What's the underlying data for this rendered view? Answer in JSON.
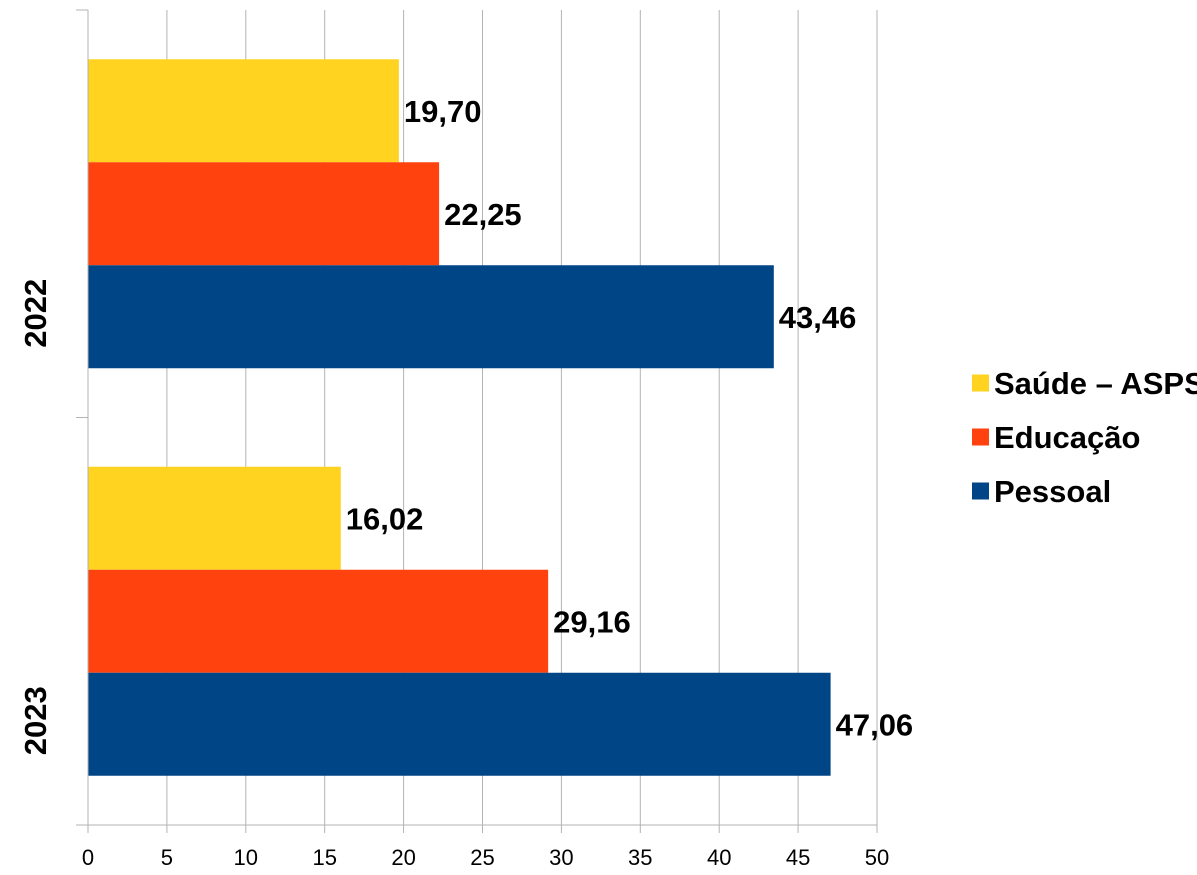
{
  "chart_data": {
    "type": "bar",
    "orientation": "horizontal",
    "categories": [
      "2022",
      "2023"
    ],
    "series": [
      {
        "name": "Saúde – ASPS",
        "color": "#ffd320",
        "values": [
          19.7,
          16.02
        ],
        "labels": [
          "19,70",
          "16,02"
        ]
      },
      {
        "name": "Educação",
        "color": "#ff420e",
        "values": [
          22.25,
          29.16
        ],
        "labels": [
          "22,25",
          "29,16"
        ]
      },
      {
        "name": "Pessoal",
        "color": "#004586",
        "values": [
          43.46,
          47.06
        ],
        "labels": [
          "43,46",
          "47,06"
        ]
      }
    ],
    "xlim": [
      0,
      50
    ],
    "x_ticks": [
      "0",
      "5",
      "10",
      "15",
      "20",
      "25",
      "30",
      "35",
      "40",
      "45",
      "50"
    ],
    "grid": true,
    "legend_position": "right",
    "title": "",
    "xlabel": "",
    "ylabel": ""
  }
}
